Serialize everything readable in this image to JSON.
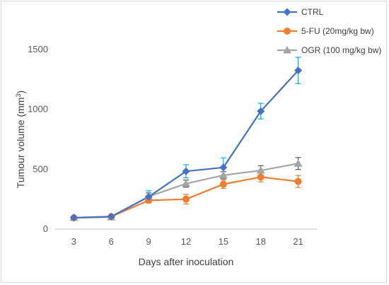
{
  "chart_data": {
    "type": "line",
    "x": [
      3,
      6,
      9,
      12,
      15,
      18,
      21
    ],
    "xlabel": "Days after inoculation",
    "ylabel": "Tumour volume (mm",
    "ylabel_sup": "3",
    "ylabel_close": ")",
    "ylim": [
      0,
      1500
    ],
    "yticks": [
      0,
      500,
      1000,
      1500
    ],
    "grid": false,
    "legend_position": "top-right",
    "series": [
      {
        "name": "CTRL",
        "color": "#4472c4",
        "error_color": "#00b0f0",
        "marker": "diamond",
        "values": [
          95,
          105,
          270,
          483,
          515,
          985,
          1325
        ],
        "errors": [
          8,
          12,
          50,
          55,
          80,
          65,
          110
        ]
      },
      {
        "name": "5-FU (20mg/kg bw)",
        "color": "#ed7d31",
        "error_color": "#ed7d31",
        "marker": "circle",
        "values": [
          95,
          105,
          240,
          250,
          375,
          435,
          398
        ],
        "errors": [
          8,
          10,
          20,
          40,
          35,
          40,
          50
        ]
      },
      {
        "name": "OGR (100 mg/kg bw)",
        "color": "#a5a5a5",
        "error_color": "#595959",
        "marker": "triangle",
        "values": [
          95,
          100,
          272,
          380,
          450,
          490,
          548
        ],
        "errors": [
          8,
          10,
          30,
          30,
          30,
          40,
          50
        ]
      }
    ]
  }
}
